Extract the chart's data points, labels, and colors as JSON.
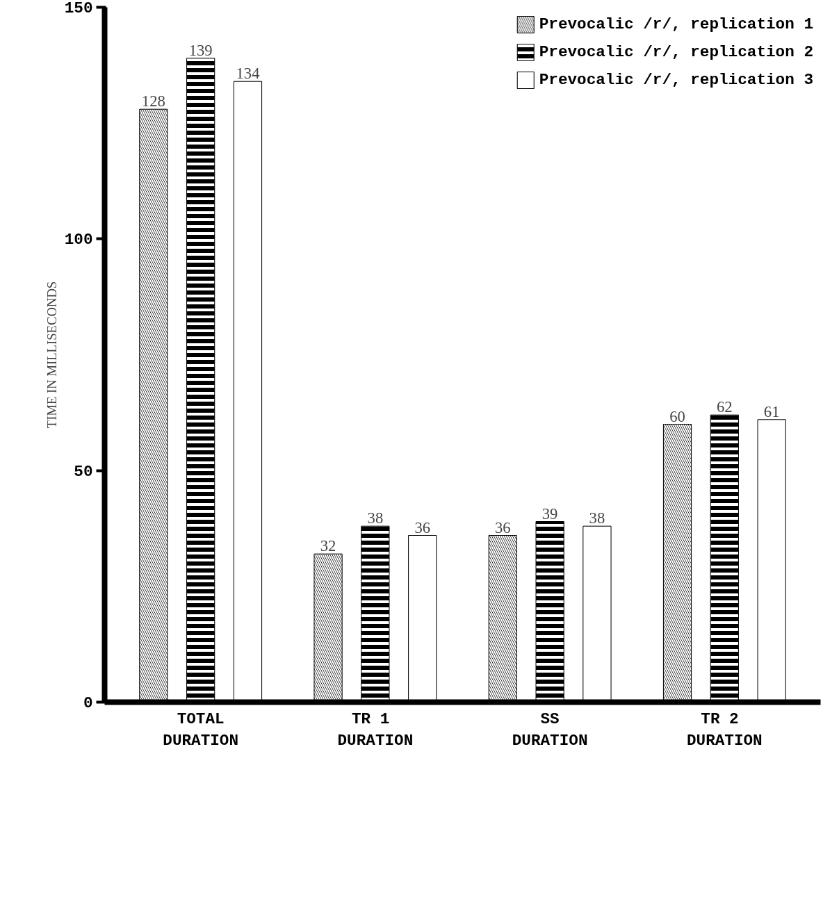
{
  "chart_data": {
    "type": "bar",
    "ylabel": "TIME IN MILLISECONDS",
    "categories": [
      "TOTAL\nDURATION",
      "TR  1\nDURATION",
      "SS\nDURATION",
      "TR  2\nDURATION"
    ],
    "series": [
      {
        "name": "Prevocalic /r/, replication 1",
        "color": "#000000",
        "values": [
          128,
          32,
          36,
          60
        ]
      },
      {
        "name": "Prevocalic /r/, replication 2",
        "color": "#000000",
        "values": [
          139,
          38,
          39,
          62
        ]
      },
      {
        "name": "Prevocalic /r/, replication 3",
        "color": "#000000",
        "values": [
          134,
          36,
          38,
          61
        ]
      }
    ],
    "ylim": [
      0,
      150
    ],
    "yticks": [
      0,
      50,
      100,
      150
    ],
    "data_labels": true,
    "legend": "top right",
    "grid": false
  }
}
